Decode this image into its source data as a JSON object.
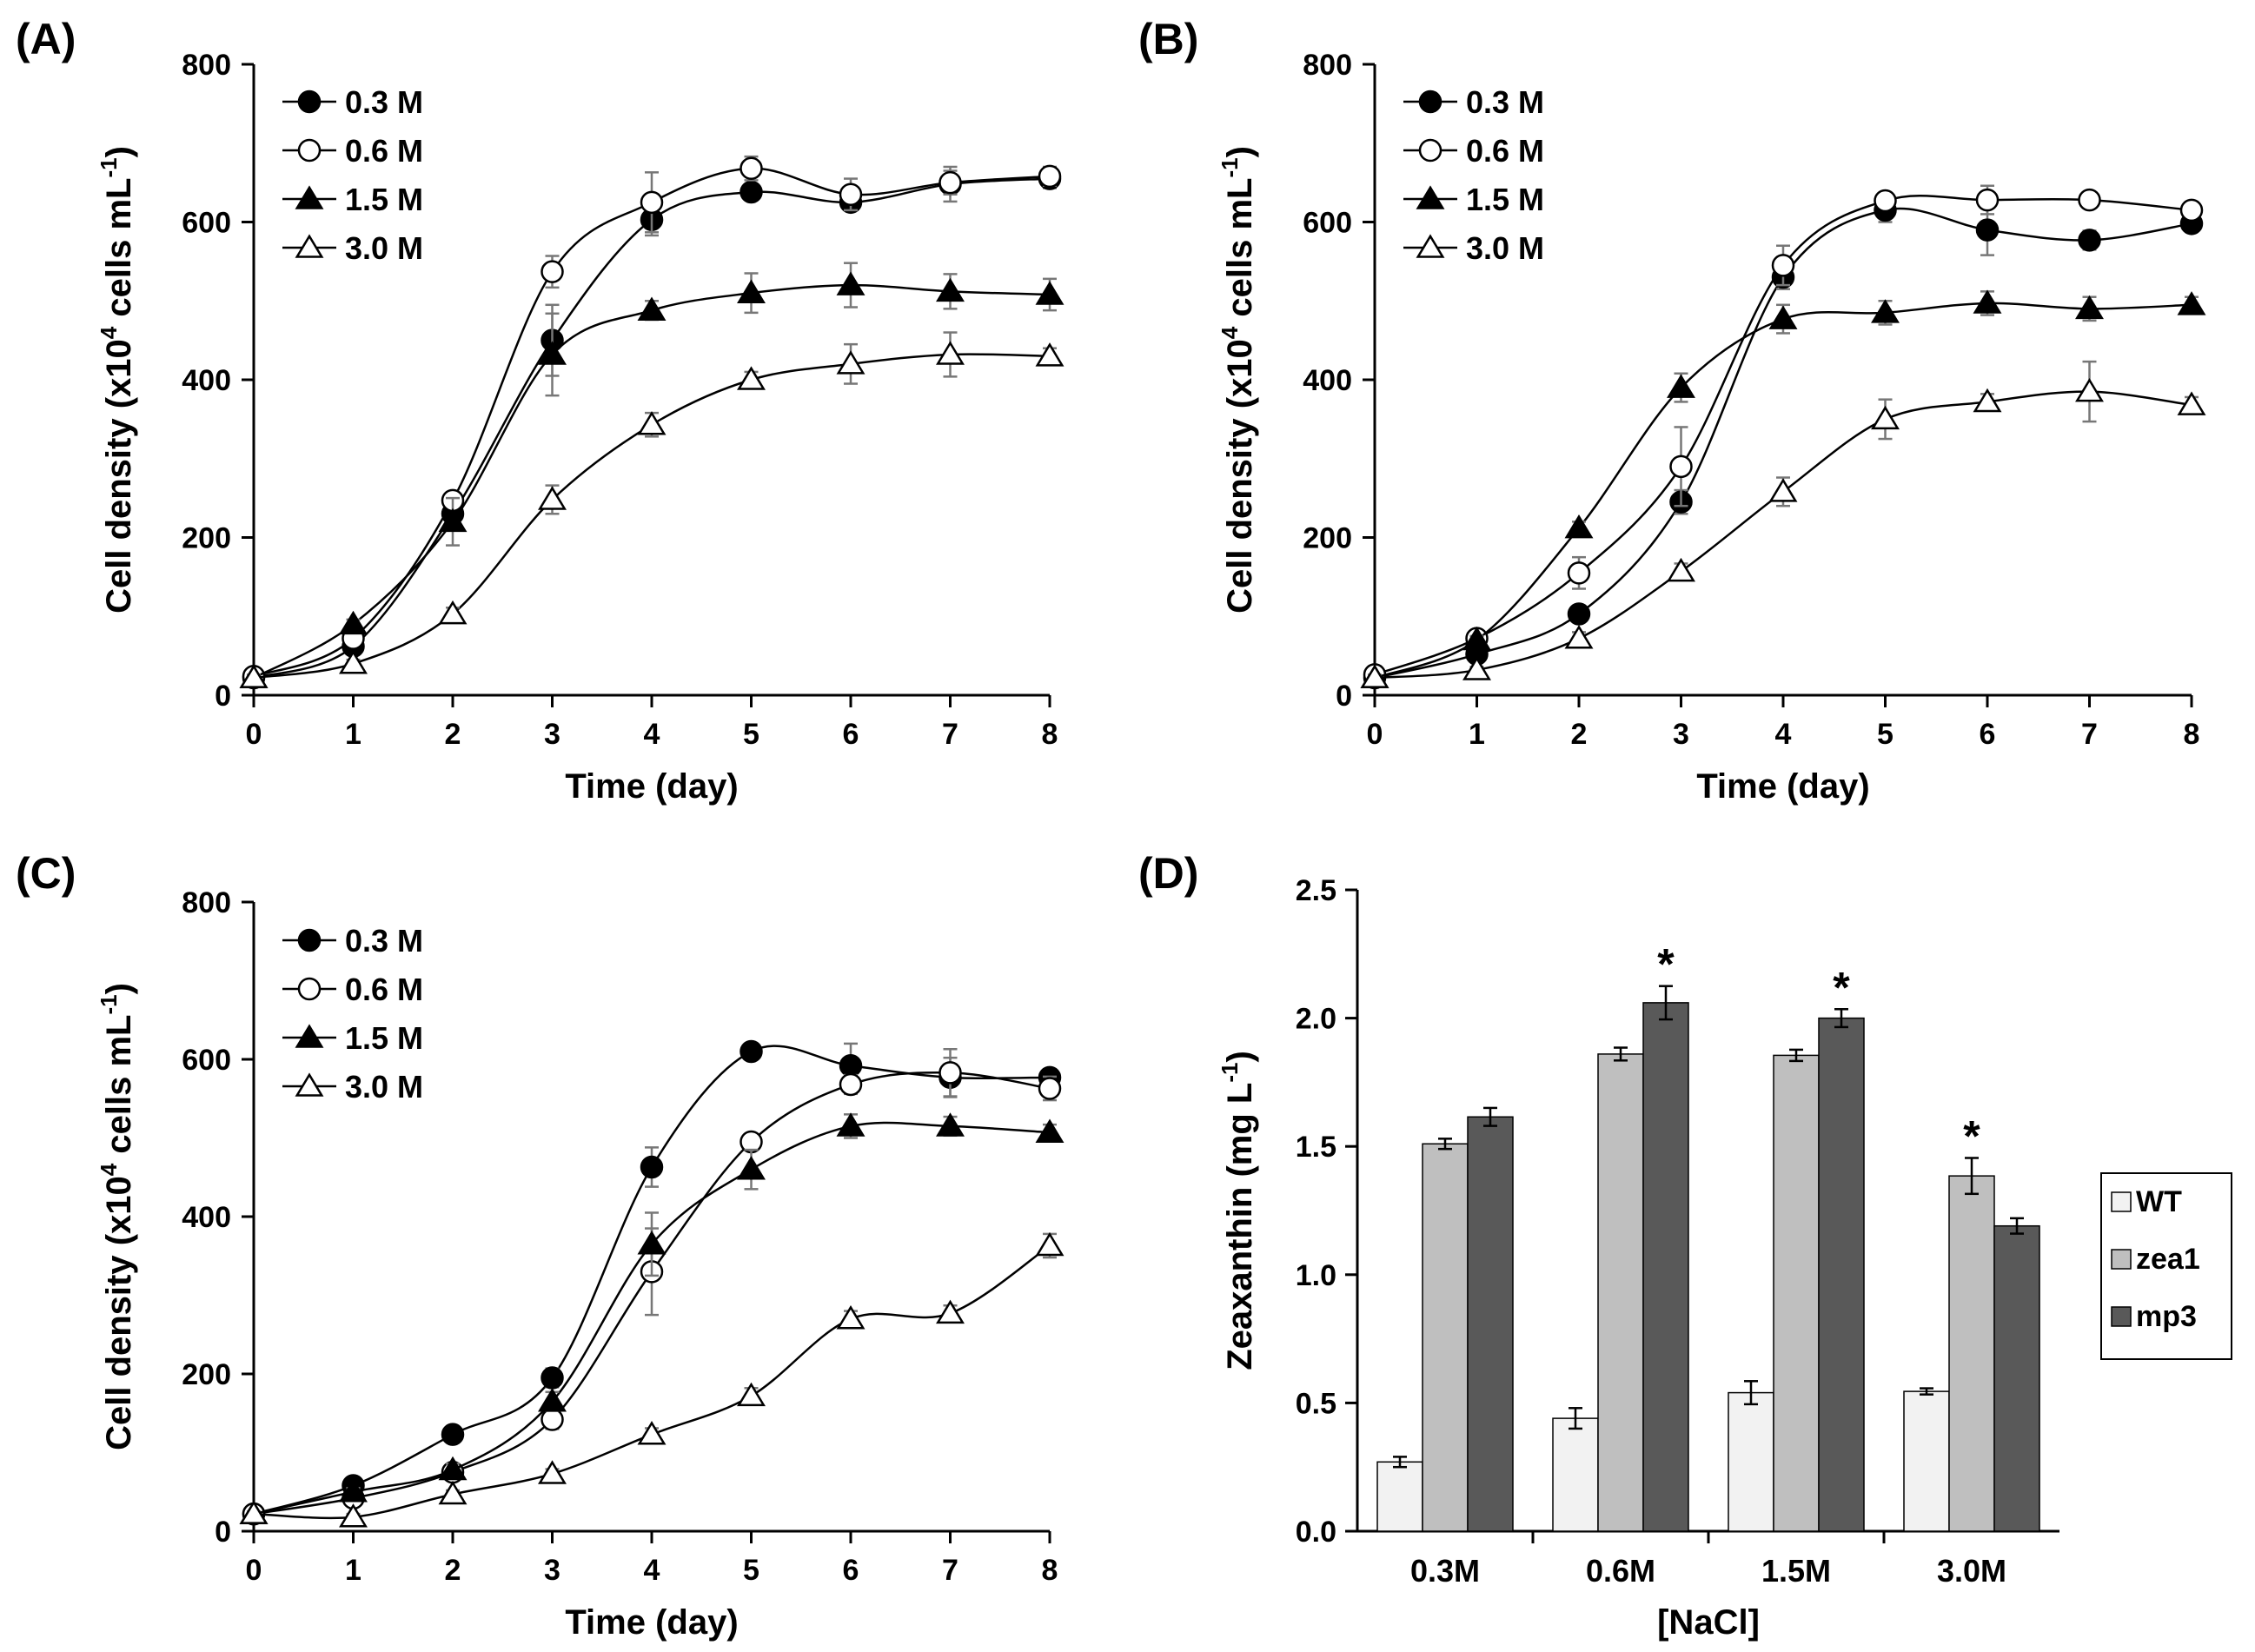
{
  "chart_data": [
    {
      "panel": "A",
      "panel_label": "(A)",
      "type": "line",
      "xlabel": "Time (day)",
      "ylabel": "Cell density (x10",
      "ylabel_exp": "4",
      "ylabel_mid": " cells mL",
      "ylabel_exp2": "-1",
      "ylabel_end": ")",
      "xlim": [
        0,
        8
      ],
      "ylim": [
        0,
        800
      ],
      "xticks": [
        "0",
        "1",
        "2",
        "3",
        "4",
        "5",
        "6",
        "7",
        "8"
      ],
      "yticks": [
        "0",
        "200",
        "400",
        "600",
        "800"
      ],
      "legend_position": "top-left",
      "series": [
        {
          "name": "0.3 M",
          "marker": "circle-filled",
          "values": [
            22,
            62,
            230,
            450,
            603,
            638,
            625,
            648,
            655
          ],
          "errors": [
            4,
            6,
            12,
            45,
            20,
            10,
            10,
            22,
            12
          ]
        },
        {
          "name": "0.6 M",
          "marker": "circle-open",
          "values": [
            24,
            72,
            247,
            537,
            625,
            668,
            635,
            650,
            658
          ],
          "errors": [
            4,
            6,
            10,
            20,
            38,
            15,
            20,
            15,
            12
          ]
        },
        {
          "name": "1.5 M",
          "marker": "triangle-filled",
          "values": [
            22,
            90,
            220,
            432,
            488,
            510,
            520,
            512,
            508
          ],
          "errors": [
            4,
            6,
            30,
            52,
            12,
            25,
            28,
            22,
            20
          ]
        },
        {
          "name": "3.0 M",
          "marker": "triangle-open",
          "values": [
            22,
            40,
            103,
            248,
            343,
            400,
            420,
            432,
            430
          ],
          "errors": [
            3,
            5,
            8,
            18,
            15,
            10,
            25,
            28,
            10
          ]
        }
      ]
    },
    {
      "panel": "B",
      "panel_label": "(B)",
      "type": "line",
      "xlabel": "Time (day)",
      "ylabel": "Cell density (x10",
      "ylabel_exp": "4",
      "ylabel_mid": " cells mL",
      "ylabel_exp2": "-1",
      "ylabel_end": ")",
      "xlim": [
        0,
        8
      ],
      "ylim": [
        0,
        800
      ],
      "xticks": [
        "0",
        "1",
        "2",
        "3",
        "4",
        "5",
        "6",
        "7",
        "8"
      ],
      "yticks": [
        "0",
        "200",
        "400",
        "600",
        "800"
      ],
      "legend_position": "top-left",
      "series": [
        {
          "name": "0.3 M",
          "marker": "circle-filled",
          "values": [
            22,
            52,
            103,
            245,
            530,
            615,
            590,
            577,
            598
          ],
          "errors": [
            4,
            5,
            8,
            15,
            15,
            15,
            32,
            12,
            10
          ]
        },
        {
          "name": "0.6 M",
          "marker": "circle-open",
          "values": [
            26,
            72,
            155,
            290,
            545,
            627,
            628,
            628,
            615
          ],
          "errors": [
            4,
            6,
            20,
            50,
            25,
            10,
            18,
            10,
            10
          ]
        },
        {
          "name": "1.5 M",
          "marker": "triangle-filled",
          "values": [
            22,
            70,
            212,
            390,
            477,
            485,
            497,
            490,
            495
          ],
          "errors": [
            4,
            5,
            8,
            18,
            18,
            15,
            15,
            15,
            10
          ]
        },
        {
          "name": "3.0 M",
          "marker": "triangle-open",
          "values": [
            22,
            32,
            72,
            157,
            258,
            350,
            372,
            385,
            368
          ],
          "errors": [
            3,
            4,
            8,
            10,
            18,
            25,
            10,
            38,
            10
          ]
        }
      ]
    },
    {
      "panel": "C",
      "panel_label": "(C)",
      "type": "line",
      "xlabel": "Time (day)",
      "ylabel": "Cell density (x10",
      "ylabel_exp": "4",
      "ylabel_mid": " cells mL",
      "ylabel_exp2": "-1",
      "ylabel_end": ")",
      "xlim": [
        0,
        8
      ],
      "ylim": [
        0,
        800
      ],
      "xticks": [
        "0",
        "1",
        "2",
        "3",
        "4",
        "5",
        "6",
        "7",
        "8"
      ],
      "yticks": [
        "0",
        "200",
        "400",
        "600",
        "800"
      ],
      "legend_position": "top-left",
      "series": [
        {
          "name": "0.3 M",
          "marker": "circle-filled",
          "values": [
            22,
            58,
            123,
            195,
            463,
            610,
            592,
            577,
            577
          ],
          "errors": [
            4,
            5,
            8,
            12,
            25,
            8,
            28,
            25,
            10
          ]
        },
        {
          "name": "0.6 M",
          "marker": "circle-open",
          "values": [
            22,
            42,
            75,
            142,
            330,
            495,
            568,
            583,
            563
          ],
          "errors": [
            3,
            5,
            8,
            12,
            55,
            10,
            12,
            30,
            15
          ]
        },
        {
          "name": "1.5 M",
          "marker": "triangle-filled",
          "values": [
            22,
            50,
            78,
            165,
            365,
            460,
            515,
            515,
            507
          ],
          "errors": [
            3,
            5,
            8,
            12,
            40,
            25,
            15,
            12,
            10
          ]
        },
        {
          "name": "3.0 M",
          "marker": "triangle-open",
          "values": [
            22,
            18,
            47,
            73,
            123,
            172,
            270,
            277,
            363
          ],
          "errors": [
            3,
            4,
            5,
            6,
            8,
            10,
            10,
            10,
            15
          ]
        }
      ]
    },
    {
      "panel": "D",
      "panel_label": "(D)",
      "type": "bar",
      "xlabel": "[NaCl]",
      "ylabel": "Zeaxanthin (mg L",
      "ylabel_exp": "-1",
      "ylabel_end": ")",
      "ylim": [
        0,
        2.5
      ],
      "yticks": [
        "0.0",
        "0.5",
        "1.0",
        "1.5",
        "2.0",
        "2.5"
      ],
      "categories": [
        "0.3M",
        "0.6M",
        "1.5M",
        "3.0M"
      ],
      "legend_position": "right",
      "series": [
        {
          "name": "WT",
          "color": "#f2f2f2",
          "values": [
            0.27,
            0.44,
            0.54,
            0.545
          ],
          "errors": [
            0.02,
            0.04,
            0.045,
            0.012
          ]
        },
        {
          "name": "zea1",
          "color": "#bfbfbf",
          "values": [
            1.51,
            1.86,
            1.855,
            1.385
          ],
          "errors": [
            0.02,
            0.025,
            0.022,
            0.07
          ]
        },
        {
          "name": "mp3",
          "color": "#595959",
          "values": [
            1.615,
            2.06,
            2.0,
            1.19
          ],
          "errors": [
            0.035,
            0.065,
            0.035,
            0.03
          ]
        }
      ],
      "annotations": [
        {
          "text": "*",
          "category": "0.6M",
          "series": "mp3"
        },
        {
          "text": "*",
          "category": "1.5M",
          "series": "mp3"
        },
        {
          "text": "*",
          "category": "3.0M",
          "series": "zea1"
        }
      ]
    }
  ]
}
